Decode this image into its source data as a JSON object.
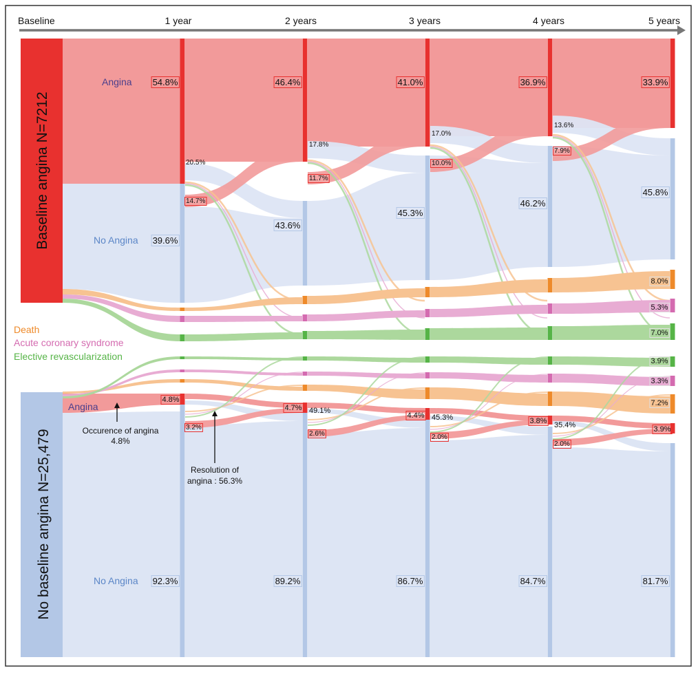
{
  "timeline": {
    "labels": [
      "Baseline",
      "1 year",
      "2 years",
      "3 years",
      "4 years",
      "5 years"
    ]
  },
  "groups": {
    "baseline_angina": {
      "label": "Baseline angina N=7212",
      "color": "#e8312f"
    },
    "no_baseline_angina": {
      "label": "No baseline angina N=25,479",
      "color": "#b3c7e6"
    }
  },
  "legend": [
    {
      "key": "death",
      "label": "Death",
      "color": "#ee8a2a"
    },
    {
      "key": "acs",
      "label": "Acute coronary syndrome",
      "color": "#d46bb0"
    },
    {
      "key": "revasc",
      "label": "Elective revascularization",
      "color": "#56b447"
    }
  ],
  "colors": {
    "angina_flow": "#f29a9a",
    "angina_node": "#e8312f",
    "no_angina_flow": "#dde5f4",
    "no_angina_node": "#b3c7e6",
    "death_flow": "#f7c392",
    "death_node": "#ee8a2a",
    "acs_flow": "#e8acd3",
    "acs_node": "#d46bb0",
    "revasc_flow": "#acd89d",
    "revasc_node": "#56b447"
  },
  "category_labels": {
    "angina_top": "Angina",
    "no_angina_top": "No Angina",
    "angina_bottom": "Angina",
    "no_angina_bottom": "No Angina"
  },
  "annotations": {
    "occurrence": "Occurence of angina",
    "occurrence_value": "4.8%",
    "resolution_line1": "Resolution of",
    "resolution_line2": "angina : 56.3%"
  },
  "values": {
    "top_angina": [
      "54.8%",
      "46.4%",
      "41.0%",
      "36.9%",
      "33.9%"
    ],
    "top_no_angina": [
      "39.6%",
      "43.6%",
      "45.3%",
      "46.2%",
      "45.8%"
    ],
    "top_resolve": [
      "20.5%",
      "17.8%",
      "17.0%",
      "13.6%"
    ],
    "top_onset": [
      "14.7%",
      "11.7%",
      "10.0%",
      "7.9%"
    ],
    "top_outcomes_5y": [
      "8.0%",
      "5.3%",
      "7.0%"
    ],
    "bottom_angina": [
      "4.8%",
      "4.7%",
      "4.4%",
      "3.8%",
      "3.9%"
    ],
    "bottom_resolve": [
      "49.1%",
      "45.3%",
      "35.4%"
    ],
    "bottom_onset": [
      "3.2%",
      "2.6%",
      "2.0%",
      "2.0%"
    ],
    "bottom_no_angina": [
      "92.3%",
      "89.2%",
      "86.7%",
      "84.7%",
      "81.7%"
    ],
    "bottom_outcomes_5y": [
      "3.9%",
      "3.3%",
      "7.2%"
    ]
  }
}
